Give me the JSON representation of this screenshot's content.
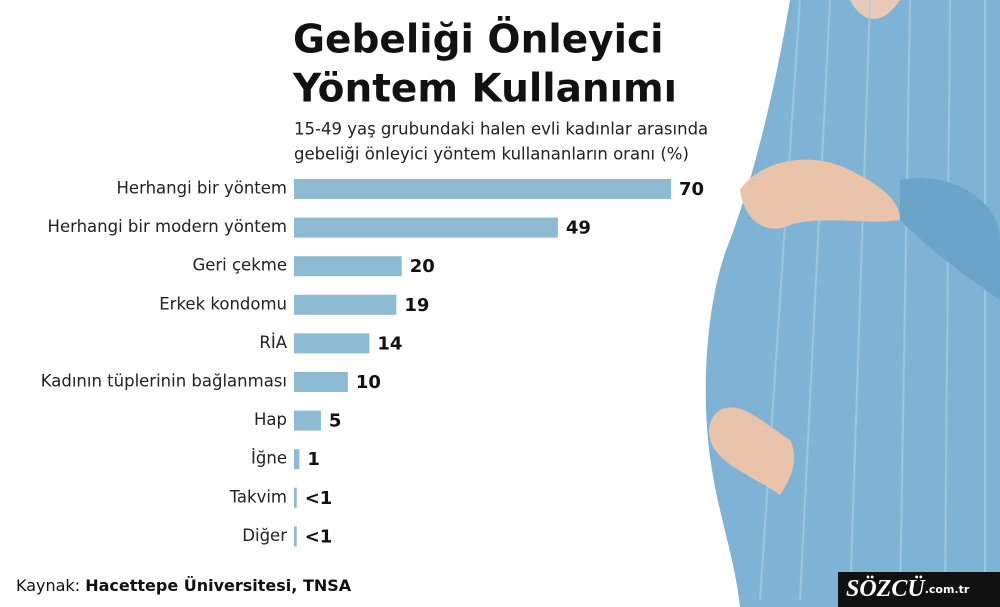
{
  "chart_data": {
    "type": "bar",
    "orientation": "horizontal",
    "title": [
      "Gebeliği Önleyici",
      "Yöntem Kullanımı"
    ],
    "subtitle": [
      "15-49 yaş grubundaki halen evli kadınlar arasında",
      "gebeliği önleyici yöntem kullananların oranı (%)"
    ],
    "categories": [
      "Herhangi bir yöntem",
      "Herhangi bir modern yöntem",
      "Geri çekme",
      "Erkek kondomu",
      "RİA",
      "Kadının tüplerinin bağlanması",
      "Hap",
      "İğne",
      "Takvim",
      "Diğer"
    ],
    "values": [
      70,
      49,
      20,
      19,
      14,
      10,
      5,
      1,
      0.5,
      0.5
    ],
    "value_labels": [
      "70",
      "49",
      "20",
      "19",
      "14",
      "10",
      "5",
      "1",
      "<1",
      "<1"
    ],
    "color": "#8dbbd3",
    "source_label": "Kaynak:",
    "source": "Hacettepe Üniversitesi, TNSA",
    "logo": "SÖZCÜ",
    "logo_suffix": ".com.tr"
  }
}
